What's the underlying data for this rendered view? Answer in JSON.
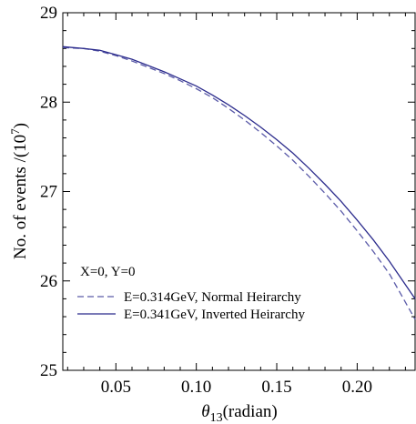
{
  "chart_data": {
    "type": "line",
    "title": "",
    "xlabel": {
      "symbol": "θ",
      "subscript": "13",
      "rest": "(radian)"
    },
    "ylabel": {
      "main": "No. of events /(10",
      "sup": "7",
      "close": ")"
    },
    "xlim": [
      0.017,
      0.236
    ],
    "ylim": [
      25,
      29
    ],
    "xticks": [
      0.05,
      0.1,
      0.15,
      0.2
    ],
    "xtick_labels": [
      "0.05",
      "0.10",
      "0.15",
      "0.20"
    ],
    "yticks": [
      25,
      26,
      27,
      28,
      29
    ],
    "ytick_labels": [
      "25",
      "26",
      "27",
      "28",
      "29"
    ],
    "grid": false,
    "legend_position": "bottom-left",
    "legend_header": "X=0, Y=0",
    "series": [
      {
        "name": "E=0.314GeV, Normal Heirarchy",
        "style": "dashed",
        "color": "#5a5aa8",
        "x": [
          0.017,
          0.03,
          0.04,
          0.05,
          0.06,
          0.07,
          0.08,
          0.09,
          0.1,
          0.11,
          0.12,
          0.13,
          0.14,
          0.15,
          0.16,
          0.17,
          0.18,
          0.19,
          0.2,
          0.21,
          0.22,
          0.236
        ],
        "y": [
          28.61,
          28.6,
          28.57,
          28.52,
          28.46,
          28.39,
          28.32,
          28.24,
          28.15,
          28.05,
          27.93,
          27.8,
          27.66,
          27.51,
          27.35,
          27.17,
          26.98,
          26.78,
          26.56,
          26.33,
          26.08,
          25.57
        ]
      },
      {
        "name": "E=0.341GeV, Inverted Heirarchy",
        "style": "solid",
        "color": "#2b2b8c",
        "x": [
          0.017,
          0.03,
          0.04,
          0.05,
          0.06,
          0.07,
          0.08,
          0.09,
          0.1,
          0.11,
          0.12,
          0.13,
          0.14,
          0.15,
          0.16,
          0.17,
          0.18,
          0.19,
          0.2,
          0.21,
          0.22,
          0.236
        ],
        "y": [
          28.62,
          28.6,
          28.58,
          28.53,
          28.48,
          28.41,
          28.34,
          28.26,
          28.18,
          28.08,
          27.97,
          27.85,
          27.72,
          27.58,
          27.43,
          27.26,
          27.08,
          26.89,
          26.68,
          26.46,
          26.22,
          25.8
        ]
      }
    ]
  }
}
